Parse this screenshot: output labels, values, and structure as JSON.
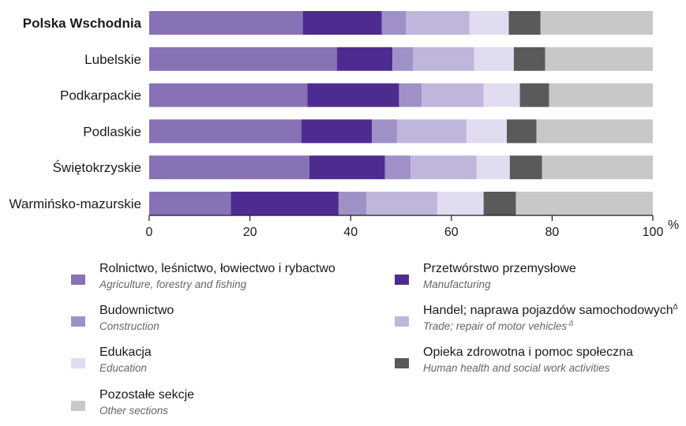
{
  "chart_data": {
    "type": "bar",
    "stacked": true,
    "orientation": "horizontal",
    "categories": [
      "Polska Wschodnia",
      "Lubelskie",
      "Podkarpackie",
      "Podlaskie",
      "Świętokrzyskie",
      "Warmińsko-mazurskie"
    ],
    "highlighted_category": "Polska Wschodnia",
    "xlim": [
      0,
      100
    ],
    "xticks": [
      0,
      20,
      40,
      60,
      80,
      100
    ],
    "xunit": "%",
    "grid": false,
    "legend_position": "bottom",
    "series": [
      {
        "name_pl": "Rolnictwo, leśnictwo, łowiectwo i rybactwo",
        "name_en": "Agriculture, forestry and fishing",
        "color": "#8872b6",
        "values": [
          30.5,
          37.3,
          31.4,
          30.2,
          31.8,
          16.2
        ]
      },
      {
        "name_pl": "Przetwórstwo przemysłowe",
        "name_en": "Manufacturing",
        "color": "#4e2c8f",
        "values": [
          15.7,
          11.0,
          18.2,
          14.0,
          15.0,
          21.4
        ]
      },
      {
        "name_pl": "Budownictwo",
        "name_en": "Construction",
        "color": "#9f91c7",
        "values": [
          4.8,
          4.1,
          4.5,
          5.0,
          5.1,
          5.5
        ]
      },
      {
        "name_pl": "Handel; naprawa pojazdów samochodowych",
        "name_en": "Trade; repair of motor vehicles",
        "name_sup": "Δ",
        "color": "#c0b6db",
        "values": [
          12.6,
          12.1,
          12.3,
          13.8,
          13.1,
          14.1
        ]
      },
      {
        "name_pl": "Edukacja",
        "name_en": "Education",
        "color": "#e1dcef",
        "values": [
          7.8,
          7.9,
          7.2,
          8.0,
          6.6,
          9.2
        ]
      },
      {
        "name_pl": "Opieka zdrowotna i pomoc społeczna",
        "name_en": "Human health and social work activities",
        "color": "#5a5a5a",
        "values": [
          6.3,
          6.2,
          5.8,
          5.9,
          6.4,
          6.4
        ]
      },
      {
        "name_pl": "Pozostałe sekcje",
        "name_en": "Other sections",
        "color": "#c8c8c8",
        "values": [
          22.3,
          21.4,
          20.6,
          23.1,
          22.0,
          27.2
        ]
      }
    ]
  }
}
